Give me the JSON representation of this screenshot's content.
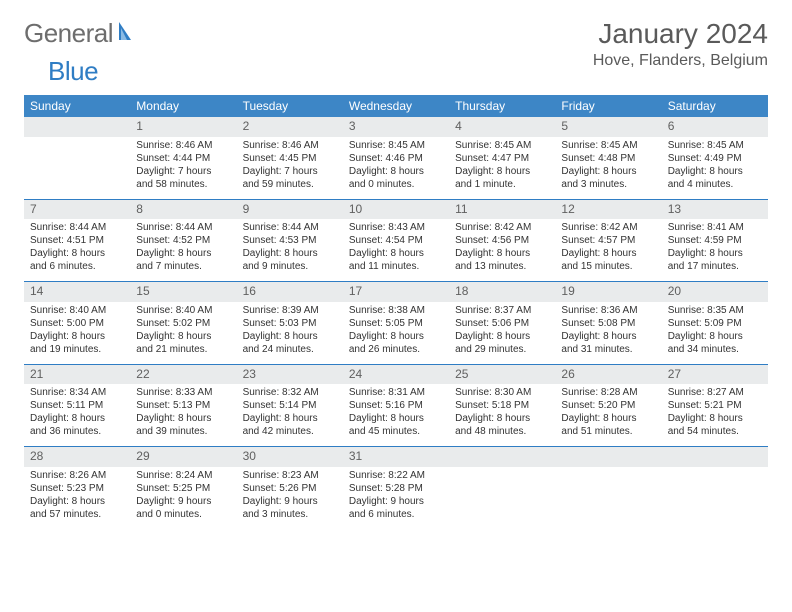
{
  "logo": {
    "text1": "General",
    "text2": "Blue"
  },
  "title": "January 2024",
  "location": "Hove, Flanders, Belgium",
  "colors": {
    "header_bg": "#3d86c6",
    "header_text": "#ffffff",
    "row_divider": "#2f7dc4",
    "daynum_bg": "#e9ebec",
    "logo_gray": "#6d6d6d",
    "logo_blue": "#2f7dc4"
  },
  "weekdays": [
    "Sunday",
    "Monday",
    "Tuesday",
    "Wednesday",
    "Thursday",
    "Friday",
    "Saturday"
  ],
  "weeks": [
    [
      {
        "n": "",
        "sr": "",
        "ss": "",
        "dl": ""
      },
      {
        "n": "1",
        "sr": "Sunrise: 8:46 AM",
        "ss": "Sunset: 4:44 PM",
        "dl": "Daylight: 7 hours and 58 minutes."
      },
      {
        "n": "2",
        "sr": "Sunrise: 8:46 AM",
        "ss": "Sunset: 4:45 PM",
        "dl": "Daylight: 7 hours and 59 minutes."
      },
      {
        "n": "3",
        "sr": "Sunrise: 8:45 AM",
        "ss": "Sunset: 4:46 PM",
        "dl": "Daylight: 8 hours and 0 minutes."
      },
      {
        "n": "4",
        "sr": "Sunrise: 8:45 AM",
        "ss": "Sunset: 4:47 PM",
        "dl": "Daylight: 8 hours and 1 minute."
      },
      {
        "n": "5",
        "sr": "Sunrise: 8:45 AM",
        "ss": "Sunset: 4:48 PM",
        "dl": "Daylight: 8 hours and 3 minutes."
      },
      {
        "n": "6",
        "sr": "Sunrise: 8:45 AM",
        "ss": "Sunset: 4:49 PM",
        "dl": "Daylight: 8 hours and 4 minutes."
      }
    ],
    [
      {
        "n": "7",
        "sr": "Sunrise: 8:44 AM",
        "ss": "Sunset: 4:51 PM",
        "dl": "Daylight: 8 hours and 6 minutes."
      },
      {
        "n": "8",
        "sr": "Sunrise: 8:44 AM",
        "ss": "Sunset: 4:52 PM",
        "dl": "Daylight: 8 hours and 7 minutes."
      },
      {
        "n": "9",
        "sr": "Sunrise: 8:44 AM",
        "ss": "Sunset: 4:53 PM",
        "dl": "Daylight: 8 hours and 9 minutes."
      },
      {
        "n": "10",
        "sr": "Sunrise: 8:43 AM",
        "ss": "Sunset: 4:54 PM",
        "dl": "Daylight: 8 hours and 11 minutes."
      },
      {
        "n": "11",
        "sr": "Sunrise: 8:42 AM",
        "ss": "Sunset: 4:56 PM",
        "dl": "Daylight: 8 hours and 13 minutes."
      },
      {
        "n": "12",
        "sr": "Sunrise: 8:42 AM",
        "ss": "Sunset: 4:57 PM",
        "dl": "Daylight: 8 hours and 15 minutes."
      },
      {
        "n": "13",
        "sr": "Sunrise: 8:41 AM",
        "ss": "Sunset: 4:59 PM",
        "dl": "Daylight: 8 hours and 17 minutes."
      }
    ],
    [
      {
        "n": "14",
        "sr": "Sunrise: 8:40 AM",
        "ss": "Sunset: 5:00 PM",
        "dl": "Daylight: 8 hours and 19 minutes."
      },
      {
        "n": "15",
        "sr": "Sunrise: 8:40 AM",
        "ss": "Sunset: 5:02 PM",
        "dl": "Daylight: 8 hours and 21 minutes."
      },
      {
        "n": "16",
        "sr": "Sunrise: 8:39 AM",
        "ss": "Sunset: 5:03 PM",
        "dl": "Daylight: 8 hours and 24 minutes."
      },
      {
        "n": "17",
        "sr": "Sunrise: 8:38 AM",
        "ss": "Sunset: 5:05 PM",
        "dl": "Daylight: 8 hours and 26 minutes."
      },
      {
        "n": "18",
        "sr": "Sunrise: 8:37 AM",
        "ss": "Sunset: 5:06 PM",
        "dl": "Daylight: 8 hours and 29 minutes."
      },
      {
        "n": "19",
        "sr": "Sunrise: 8:36 AM",
        "ss": "Sunset: 5:08 PM",
        "dl": "Daylight: 8 hours and 31 minutes."
      },
      {
        "n": "20",
        "sr": "Sunrise: 8:35 AM",
        "ss": "Sunset: 5:09 PM",
        "dl": "Daylight: 8 hours and 34 minutes."
      }
    ],
    [
      {
        "n": "21",
        "sr": "Sunrise: 8:34 AM",
        "ss": "Sunset: 5:11 PM",
        "dl": "Daylight: 8 hours and 36 minutes."
      },
      {
        "n": "22",
        "sr": "Sunrise: 8:33 AM",
        "ss": "Sunset: 5:13 PM",
        "dl": "Daylight: 8 hours and 39 minutes."
      },
      {
        "n": "23",
        "sr": "Sunrise: 8:32 AM",
        "ss": "Sunset: 5:14 PM",
        "dl": "Daylight: 8 hours and 42 minutes."
      },
      {
        "n": "24",
        "sr": "Sunrise: 8:31 AM",
        "ss": "Sunset: 5:16 PM",
        "dl": "Daylight: 8 hours and 45 minutes."
      },
      {
        "n": "25",
        "sr": "Sunrise: 8:30 AM",
        "ss": "Sunset: 5:18 PM",
        "dl": "Daylight: 8 hours and 48 minutes."
      },
      {
        "n": "26",
        "sr": "Sunrise: 8:28 AM",
        "ss": "Sunset: 5:20 PM",
        "dl": "Daylight: 8 hours and 51 minutes."
      },
      {
        "n": "27",
        "sr": "Sunrise: 8:27 AM",
        "ss": "Sunset: 5:21 PM",
        "dl": "Daylight: 8 hours and 54 minutes."
      }
    ],
    [
      {
        "n": "28",
        "sr": "Sunrise: 8:26 AM",
        "ss": "Sunset: 5:23 PM",
        "dl": "Daylight: 8 hours and 57 minutes."
      },
      {
        "n": "29",
        "sr": "Sunrise: 8:24 AM",
        "ss": "Sunset: 5:25 PM",
        "dl": "Daylight: 9 hours and 0 minutes."
      },
      {
        "n": "30",
        "sr": "Sunrise: 8:23 AM",
        "ss": "Sunset: 5:26 PM",
        "dl": "Daylight: 9 hours and 3 minutes."
      },
      {
        "n": "31",
        "sr": "Sunrise: 8:22 AM",
        "ss": "Sunset: 5:28 PM",
        "dl": "Daylight: 9 hours and 6 minutes."
      },
      {
        "n": "",
        "sr": "",
        "ss": "",
        "dl": ""
      },
      {
        "n": "",
        "sr": "",
        "ss": "",
        "dl": ""
      },
      {
        "n": "",
        "sr": "",
        "ss": "",
        "dl": ""
      }
    ]
  ]
}
